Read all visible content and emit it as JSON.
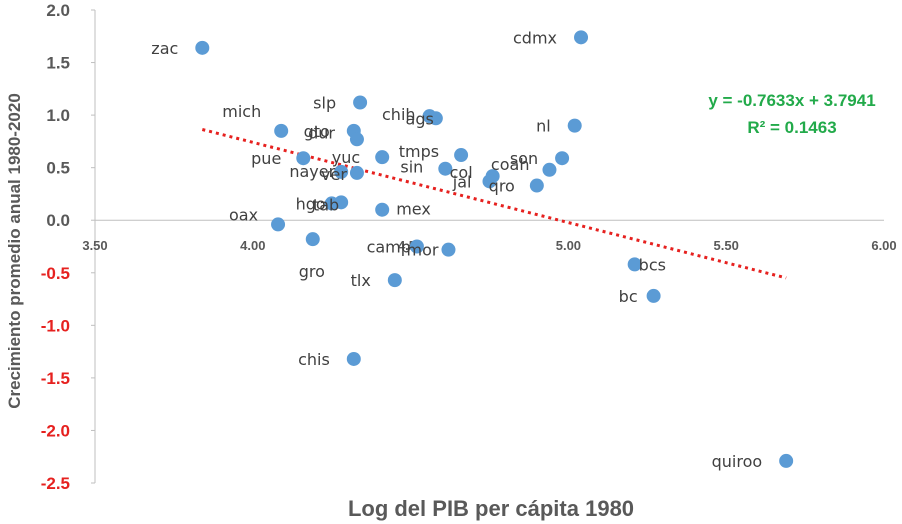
{
  "chart_data": {
    "type": "scatter",
    "xlabel": "Log del PIB per cápita 1980",
    "ylabel": "Crecimiento promedio anual 1980-2020",
    "xlim": [
      3.5,
      6.0
    ],
    "ylim": [
      -2.5,
      2.0
    ],
    "x_ticks": [
      "3.50",
      "4.00",
      "4.50",
      "5.00",
      "5.50",
      "6.00"
    ],
    "y_ticks": [
      "2.0",
      "1.5",
      "1.0",
      "0.5",
      "0.0",
      "-0.5",
      "-1.0",
      "-1.5",
      "-2.0",
      "-2.5"
    ],
    "grid": false,
    "points": [
      {
        "label": "zac",
        "x": 3.84,
        "y": 1.64
      },
      {
        "label": "cdmx",
        "x": 5.04,
        "y": 1.74
      },
      {
        "label": "slp",
        "x": 4.34,
        "y": 1.12
      },
      {
        "label": "chih",
        "x": 4.56,
        "y": 0.99
      },
      {
        "label": "ags",
        "x": 4.58,
        "y": 0.97
      },
      {
        "label": "nl",
        "x": 5.02,
        "y": 0.9
      },
      {
        "label": "mich",
        "x": 4.09,
        "y": 0.85
      },
      {
        "label": "gto",
        "x": 4.32,
        "y": 0.85
      },
      {
        "label": "dur",
        "x": 4.33,
        "y": 0.77
      },
      {
        "label": "tmps",
        "x": 4.66,
        "y": 0.62
      },
      {
        "label": "son",
        "x": 4.98,
        "y": 0.59
      },
      {
        "label": "pue",
        "x": 4.16,
        "y": 0.59
      },
      {
        "label": "yuc",
        "x": 4.41,
        "y": 0.6
      },
      {
        "label": "sin",
        "x": 4.61,
        "y": 0.49
      },
      {
        "label": "coah",
        "x": 4.94,
        "y": 0.48
      },
      {
        "label": "nayer",
        "x": 4.28,
        "y": 0.46
      },
      {
        "label": "ver",
        "x": 4.33,
        "y": 0.45
      },
      {
        "label": "col",
        "x": 4.76,
        "y": 0.42
      },
      {
        "label": "jal",
        "x": 4.75,
        "y": 0.37
      },
      {
        "label": "qro",
        "x": 4.9,
        "y": 0.33
      },
      {
        "label": "hgo",
        "x": 4.25,
        "y": 0.16
      },
      {
        "label": "tab",
        "x": 4.28,
        "y": 0.17
      },
      {
        "label": "mex",
        "x": 4.41,
        "y": 0.1
      },
      {
        "label": "oax",
        "x": 4.08,
        "y": -0.04
      },
      {
        "label": "gro",
        "x": 4.19,
        "y": -0.18
      },
      {
        "label": "camp",
        "x": 4.52,
        "y": -0.25
      },
      {
        "label": "mor",
        "x": 4.62,
        "y": -0.28
      },
      {
        "label": "bcs",
        "x": 5.21,
        "y": -0.42
      },
      {
        "label": "tlx",
        "x": 4.45,
        "y": -0.57
      },
      {
        "label": "bc",
        "x": 5.27,
        "y": -0.72
      },
      {
        "label": "chis",
        "x": 4.32,
        "y": -1.32
      },
      {
        "label": "quiroo",
        "x": 5.69,
        "y": -2.29
      }
    ],
    "trendline": {
      "x_start": 3.84,
      "x_end": 5.69,
      "slope": -0.7633,
      "intercept": 3.7941,
      "equation": "y = -0.7633x + 3.7941",
      "r2": "R² = 0.1463"
    },
    "colors": {
      "points": "#5B9BD5",
      "trendline": "#E6211F",
      "equation": "#22AA4A",
      "negative_ticks": "#E6211F",
      "positive_ticks": "#595959",
      "labels": "#404040"
    }
  }
}
